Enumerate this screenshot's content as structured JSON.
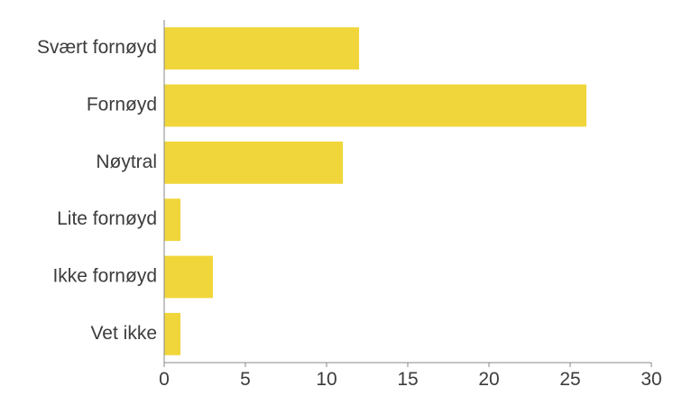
{
  "chart_data": {
    "type": "bar",
    "orientation": "horizontal",
    "categories": [
      "Svært fornøyd",
      "Fornøyd",
      "Nøytral",
      "Lite fornøyd",
      "Ikke fornøyd",
      "Vet ikke"
    ],
    "values": [
      12,
      26,
      11,
      1,
      3,
      1
    ],
    "xlim": [
      0,
      30
    ],
    "xticks": [
      0,
      5,
      10,
      15,
      20,
      25,
      30
    ],
    "xtick_labels": [
      "0",
      "5",
      "10",
      "15",
      "20",
      "25",
      "30"
    ],
    "title": "",
    "xlabel": "",
    "ylabel": "",
    "grid": false,
    "legend": "none",
    "bar_color": "#f0d63a"
  }
}
